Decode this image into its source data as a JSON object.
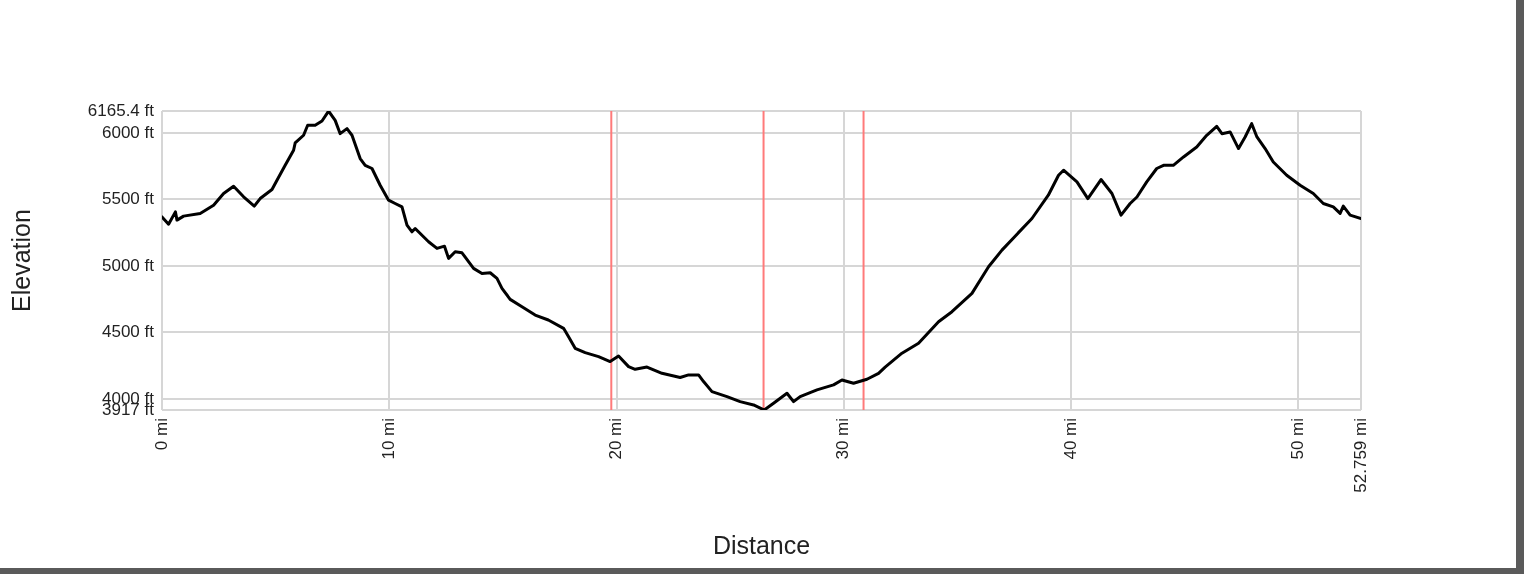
{
  "chart_data": {
    "type": "line",
    "xlabel": "Distance",
    "ylabel": "Elevation",
    "x": [
      0,
      0.29,
      0.59,
      0.66,
      0.95,
      1.68,
      2.27,
      2.71,
      3.15,
      3.59,
      4.06,
      4.32,
      4.84,
      5.06,
      5.42,
      5.79,
      5.86,
      6.23,
      6.41,
      6.74,
      7.04,
      7.33,
      7.62,
      7.84,
      8.14,
      8.36,
      8.72,
      8.94,
      9.24,
      9.6,
      9.97,
      10.26,
      10.56,
      10.78,
      11.0,
      11.14,
      11.73,
      12.1,
      12.43,
      12.61,
      12.9,
      13.2,
      13.71,
      14.08,
      14.44,
      14.74,
      14.96,
      15.32,
      15.84,
      16.42,
      17.0,
      17.67,
      17.89,
      18.18,
      18.62,
      19.21,
      19.72,
      20.09,
      20.53,
      20.82,
      21.34,
      22.0,
      22.8,
      23.17,
      23.61,
      23.83,
      24.2,
      24.86,
      25.44,
      26.03,
      26.5,
      26.91,
      27.5,
      27.79,
      28.08,
      28.82,
      29.55,
      29.92,
      30.43,
      31.02,
      31.53,
      31.82,
      32.56,
      33.29,
      34.17,
      34.76,
      35.64,
      36.37,
      36.96,
      37.54,
      38.28,
      39.0,
      39.45,
      39.67,
      40.26,
      40.74,
      41.32,
      41.8,
      42.2,
      42.6,
      42.9,
      43.33,
      43.77,
      44.07,
      44.5,
      44.95,
      45.53,
      45.97,
      46.41,
      46.64,
      47.0,
      47.37,
      47.66,
      47.95,
      48.18,
      48.54,
      48.9,
      49.49,
      50.08,
      50.66,
      51.1,
      51.54,
      51.84,
      51.98,
      52.28,
      52.759
    ],
    "series": [
      {
        "color": "#000000",
        "values": [
          5369,
          5314,
          5407,
          5345,
          5375,
          5395,
          5457,
          5545,
          5600,
          5520,
          5450,
          5507,
          5575,
          5645,
          5757,
          5870,
          5925,
          5983,
          6058,
          6058,
          6090,
          6165,
          6095,
          5995,
          6033,
          5983,
          5808,
          5757,
          5733,
          5607,
          5495,
          5470,
          5444,
          5307,
          5257,
          5282,
          5182,
          5132,
          5149,
          5057,
          5107,
          5099,
          4982,
          4944,
          4949,
          4907,
          4832,
          4749,
          4694,
          4631,
          4594,
          4531,
          4468,
          4381,
          4348,
          4318,
          4281,
          4323,
          4243,
          4223,
          4240,
          4193,
          4161,
          4181,
          4181,
          4131,
          4055,
          4018,
          3980,
          3955,
          3917,
          3968,
          4043,
          3980,
          4018,
          4068,
          4106,
          4143,
          4118,
          4148,
          4193,
          4240,
          4344,
          4419,
          4581,
          4656,
          4794,
          4994,
          5119,
          5224,
          5357,
          5532,
          5682,
          5720,
          5632,
          5507,
          5650,
          5545,
          5382,
          5470,
          5519,
          5632,
          5733,
          5757,
          5757,
          5820,
          5895,
          5983,
          6050,
          5995,
          6008,
          5883,
          5970,
          6070,
          5970,
          5883,
          5782,
          5682,
          5607,
          5545,
          5470,
          5444,
          5395,
          5450,
          5382,
          5357
        ]
      }
    ],
    "xlim": [
      0,
      52.759
    ],
    "xticks": [
      {
        "value": 0,
        "label": "0 mi"
      },
      {
        "value": 10,
        "label": "10 mi"
      },
      {
        "value": 20,
        "label": "20 mi"
      },
      {
        "value": 30,
        "label": "30 mi"
      },
      {
        "value": 40,
        "label": "40 mi"
      },
      {
        "value": 50,
        "label": "50 mi"
      },
      {
        "value": 52.759,
        "label": "52.759 mi"
      }
    ],
    "ylim": [
      3917,
      6165.4
    ],
    "yticks": [
      {
        "value": 3917,
        "label": "3917 ft"
      },
      {
        "value": 4000,
        "label": "4000 ft"
      },
      {
        "value": 4500,
        "label": "4500 ft"
      },
      {
        "value": 5000,
        "label": "5000 ft"
      },
      {
        "value": 5500,
        "label": "5500 ft"
      },
      {
        "value": 6000,
        "label": "6000 ft"
      },
      {
        "value": 6165.4,
        "label": "6165.4 ft"
      }
    ],
    "ref_lines": [
      {
        "axis": "x",
        "value": 19.77,
        "color": "#ff7a7a"
      },
      {
        "axis": "x",
        "value": 26.47,
        "color": "#ff7a7a"
      },
      {
        "axis": "x",
        "value": 30.87,
        "color": "#ff7a7a"
      }
    ],
    "grid": true,
    "marker": "none",
    "line_style": "solid"
  }
}
